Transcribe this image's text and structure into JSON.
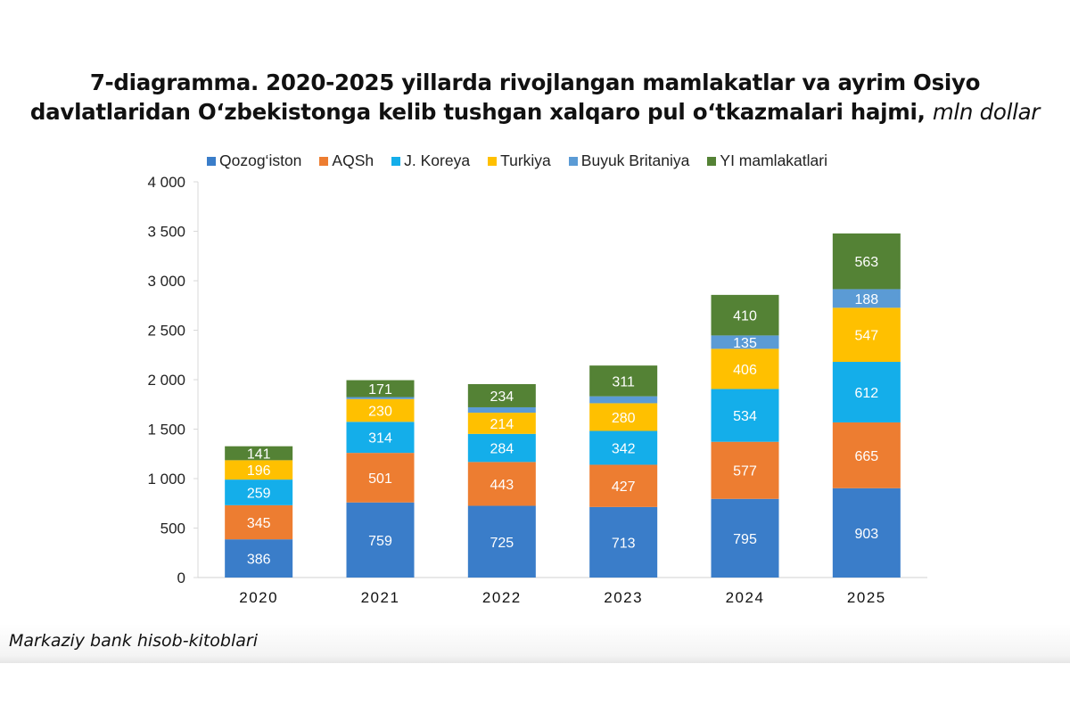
{
  "title": {
    "line1": "7-diagramma. 2020-2025 yillarda rivojlangan mamlakatlar va ayrim Osiyo",
    "line2": "davlatlaridan  O‘zbekistonga kelib tushgan xalqaro pul o‘tkazmalari hajmi,",
    "unit": "mln dollar"
  },
  "source": "Markaziy bank hisob-kitoblari",
  "chart_data": {
    "type": "bar",
    "stacked": true,
    "title": "7-diagramma. 2020-2025 yillarda rivojlangan mamlakatlar va ayrim Osiyo davlatlaridan O‘zbekistonga kelib tushgan xalqaro pul o‘tkazmalari hajmi, mln dollar",
    "xlabel": "",
    "ylabel": "",
    "categories": [
      "2020",
      "2021",
      "2022",
      "2023",
      "2024",
      "2025"
    ],
    "ylim": [
      0,
      4000
    ],
    "yticks": [
      0,
      500,
      1000,
      1500,
      2000,
      2500,
      3000,
      3500,
      4000
    ],
    "ytick_labels": [
      "0",
      "500",
      "1 000",
      "1 500",
      "2 000",
      "2 500",
      "3 000",
      "3 500",
      "4 000"
    ],
    "grid": false,
    "legend_position": "top",
    "series": [
      {
        "name": "Qozog‘iston",
        "color": "#3A7DC9",
        "values": [
          386,
          759,
          725,
          713,
          795,
          903
        ],
        "labels": [
          "386",
          "759",
          "725",
          "713",
          "795",
          "903"
        ]
      },
      {
        "name": "AQSh",
        "color": "#ED7D31",
        "values": [
          345,
          501,
          443,
          427,
          577,
          665
        ],
        "labels": [
          "345",
          "501",
          "443",
          "427",
          "577",
          "665"
        ]
      },
      {
        "name": "J. Koreya",
        "color": "#14AEEA",
        "values": [
          259,
          314,
          284,
          342,
          534,
          612
        ],
        "labels": [
          "259",
          "314",
          "284",
          "342",
          "534",
          "612"
        ]
      },
      {
        "name": "Turkiya",
        "color": "#FFC000",
        "values": [
          196,
          230,
          214,
          280,
          406,
          547
        ],
        "labels": [
          "196",
          "230",
          "214",
          "280",
          "406",
          "547"
        ]
      },
      {
        "name": "Buyuk Britaniya",
        "color": "#5B9BD5",
        "values": [
          0,
          20,
          55,
          70,
          135,
          188
        ],
        "labels": [
          "",
          "",
          "",
          "",
          "135",
          "188"
        ]
      },
      {
        "name": "YI mamlakatlari",
        "color": "#548235",
        "values": [
          141,
          171,
          234,
          311,
          410,
          563
        ],
        "labels": [
          "141",
          "171",
          "234",
          "311",
          "410",
          "563"
        ]
      }
    ]
  }
}
